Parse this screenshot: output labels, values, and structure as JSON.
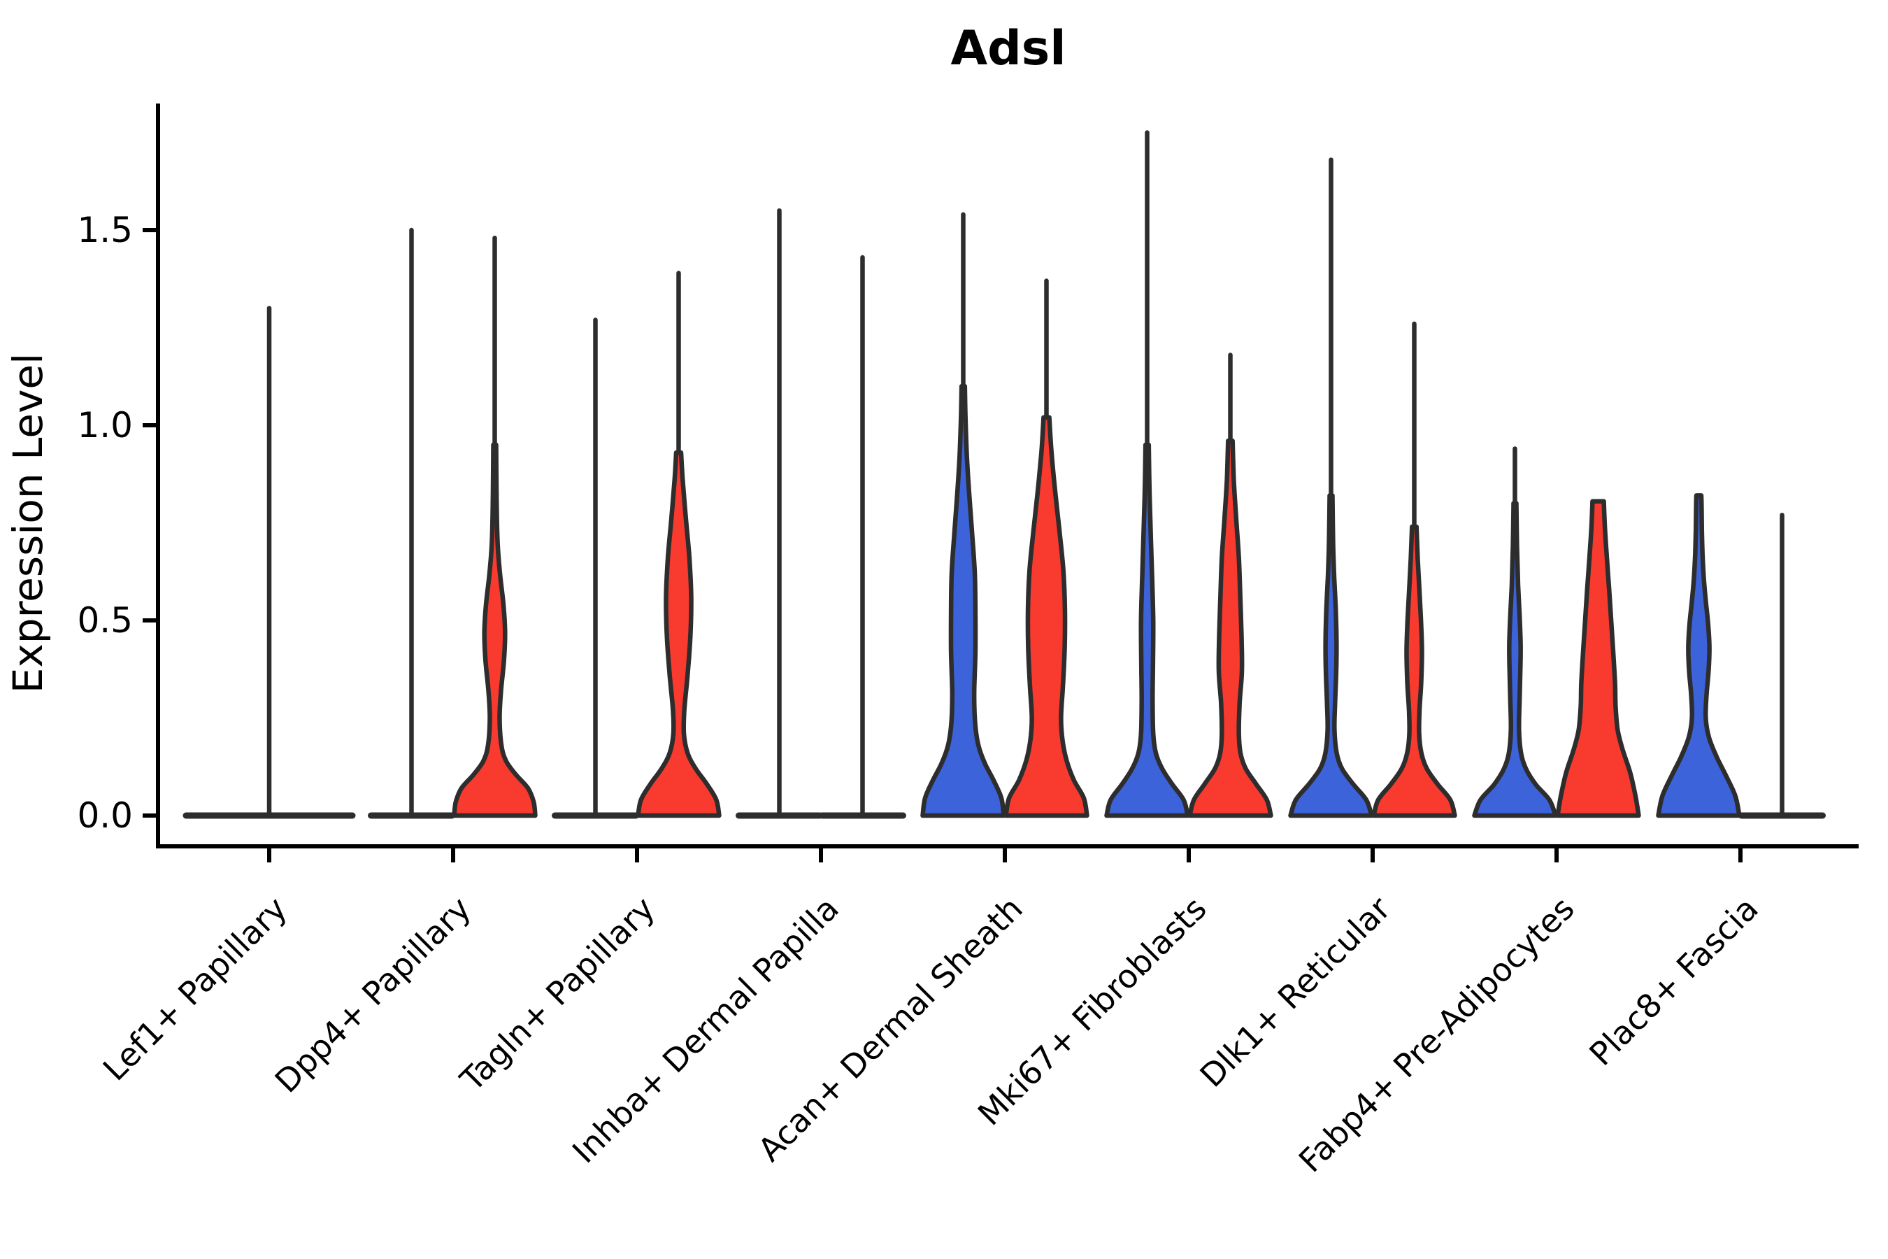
{
  "chart_data": {
    "type": "violin",
    "title": "Adsl",
    "ylabel": "Expression Level",
    "xlabel": "",
    "ylim": [
      0.0,
      1.82
    ],
    "yticks": [
      0.0,
      0.5,
      1.0,
      1.5
    ],
    "ytick_labels": [
      "0.0",
      "0.5",
      "1.0",
      "1.5"
    ],
    "grid": false,
    "legend": "none",
    "groups": [
      "blue",
      "red"
    ],
    "colors": {
      "blue": "#3C63DA",
      "red": "#F83A2F",
      "outline": "#2D2D2D",
      "axis": "#000000"
    },
    "categories": [
      {
        "label": "Lef1+ Papillary",
        "violins": [
          {
            "group": "single",
            "color": "none",
            "style": "flat",
            "span": "full",
            "max": 1.3
          }
        ]
      },
      {
        "label": "Dpp4+ Papillary",
        "violins": [
          {
            "group": "blue",
            "color": "blue",
            "style": "flat",
            "max": 1.5
          },
          {
            "group": "red",
            "color": "red",
            "style": "body",
            "max": 1.48,
            "blunt": false,
            "profile": [
              [
                0,
                1.0
              ],
              [
                0.035,
                0.96
              ],
              [
                0.07,
                0.82
              ],
              [
                0.105,
                0.52
              ],
              [
                0.14,
                0.28
              ],
              [
                0.18,
                0.165
              ],
              [
                0.25,
                0.12
              ],
              [
                0.32,
                0.155
              ],
              [
                0.4,
                0.23
              ],
              [
                0.47,
                0.255
              ],
              [
                0.54,
                0.215
              ],
              [
                0.62,
                0.13
              ],
              [
                0.7,
                0.07
              ],
              [
                0.82,
                0.045
              ],
              [
                0.95,
                0.035
              ]
            ]
          }
        ]
      },
      {
        "label": "Tagln+ Papillary",
        "violins": [
          {
            "group": "blue",
            "color": "blue",
            "style": "flat",
            "max": 1.27
          },
          {
            "group": "red",
            "color": "red",
            "style": "body",
            "max": 1.39,
            "blunt": false,
            "profile": [
              [
                0,
                1.0
              ],
              [
                0.04,
                0.93
              ],
              [
                0.08,
                0.7
              ],
              [
                0.12,
                0.42
              ],
              [
                0.16,
                0.22
              ],
              [
                0.21,
                0.13
              ],
              [
                0.27,
                0.14
              ],
              [
                0.36,
                0.22
              ],
              [
                0.46,
                0.29
              ],
              [
                0.56,
                0.31
              ],
              [
                0.66,
                0.265
              ],
              [
                0.76,
                0.18
              ],
              [
                0.86,
                0.1
              ],
              [
                0.93,
                0.06
              ]
            ]
          }
        ]
      },
      {
        "label": "Inhba+ Dermal Papilla",
        "violins": [
          {
            "group": "blue",
            "color": "blue",
            "style": "flat",
            "max": 1.55
          },
          {
            "group": "red",
            "color": "red",
            "style": "flat",
            "max": 1.43
          }
        ]
      },
      {
        "label": "Acan+ Dermal Sheath",
        "violins": [
          {
            "group": "blue",
            "color": "blue",
            "style": "body",
            "max": 1.54,
            "blunt": false,
            "profile": [
              [
                0,
                1.0
              ],
              [
                0.045,
                0.94
              ],
              [
                0.09,
                0.75
              ],
              [
                0.13,
                0.55
              ],
              [
                0.17,
                0.4
              ],
              [
                0.21,
                0.32
              ],
              [
                0.26,
                0.28
              ],
              [
                0.32,
                0.27
              ],
              [
                0.42,
                0.3
              ],
              [
                0.52,
                0.3
              ],
              [
                0.62,
                0.285
              ],
              [
                0.72,
                0.22
              ],
              [
                0.82,
                0.15
              ],
              [
                0.92,
                0.09
              ],
              [
                1.02,
                0.055
              ],
              [
                1.1,
                0.04
              ]
            ]
          },
          {
            "group": "red",
            "color": "red",
            "style": "body",
            "max": 1.37,
            "blunt": false,
            "profile": [
              [
                0,
                1.0
              ],
              [
                0.045,
                0.92
              ],
              [
                0.09,
                0.68
              ],
              [
                0.14,
                0.5
              ],
              [
                0.19,
                0.4
              ],
              [
                0.25,
                0.36
              ],
              [
                0.33,
                0.405
              ],
              [
                0.43,
                0.45
              ],
              [
                0.53,
                0.455
              ],
              [
                0.63,
                0.415
              ],
              [
                0.73,
                0.32
              ],
              [
                0.83,
                0.215
              ],
              [
                0.93,
                0.125
              ],
              [
                1.02,
                0.07
              ]
            ]
          }
        ]
      },
      {
        "label": "Mki67+ Fibroblasts",
        "violins": [
          {
            "group": "blue",
            "color": "blue",
            "style": "body",
            "max": 1.75,
            "blunt": false,
            "profile": [
              [
                0,
                1.0
              ],
              [
                0.04,
                0.9
              ],
              [
                0.08,
                0.62
              ],
              [
                0.12,
                0.37
              ],
              [
                0.16,
                0.215
              ],
              [
                0.21,
                0.15
              ],
              [
                0.3,
                0.135
              ],
              [
                0.4,
                0.145
              ],
              [
                0.5,
                0.15
              ],
              [
                0.6,
                0.125
              ],
              [
                0.7,
                0.095
              ],
              [
                0.82,
                0.06
              ],
              [
                0.95,
                0.04
              ]
            ]
          },
          {
            "group": "red",
            "color": "red",
            "style": "body",
            "max": 1.18,
            "blunt": false,
            "profile": [
              [
                0,
                1.0
              ],
              [
                0.04,
                0.9
              ],
              [
                0.08,
                0.64
              ],
              [
                0.12,
                0.38
              ],
              [
                0.16,
                0.25
              ],
              [
                0.21,
                0.21
              ],
              [
                0.29,
                0.23
              ],
              [
                0.37,
                0.285
              ],
              [
                0.46,
                0.275
              ],
              [
                0.56,
                0.245
              ],
              [
                0.66,
                0.21
              ],
              [
                0.76,
                0.145
              ],
              [
                0.86,
                0.085
              ],
              [
                0.96,
                0.055
              ]
            ]
          }
        ]
      },
      {
        "label": "Dlk1+ Reticular",
        "violins": [
          {
            "group": "blue",
            "color": "blue",
            "style": "body",
            "max": 1.68,
            "blunt": false,
            "profile": [
              [
                0,
                1.0
              ],
              [
                0.04,
                0.87
              ],
              [
                0.08,
                0.55
              ],
              [
                0.12,
                0.27
              ],
              [
                0.16,
                0.14
              ],
              [
                0.22,
                0.085
              ],
              [
                0.29,
                0.1
              ],
              [
                0.37,
                0.128
              ],
              [
                0.45,
                0.135
              ],
              [
                0.53,
                0.115
              ],
              [
                0.61,
                0.078
              ],
              [
                0.7,
                0.05
              ],
              [
                0.82,
                0.035
              ]
            ]
          },
          {
            "group": "red",
            "color": "red",
            "style": "body",
            "max": 1.26,
            "blunt": false,
            "profile": [
              [
                0,
                1.0
              ],
              [
                0.04,
                0.89
              ],
              [
                0.08,
                0.58
              ],
              [
                0.12,
                0.31
              ],
              [
                0.16,
                0.175
              ],
              [
                0.21,
                0.12
              ],
              [
                0.27,
                0.13
              ],
              [
                0.34,
                0.17
              ],
              [
                0.42,
                0.19
              ],
              [
                0.5,
                0.165
              ],
              [
                0.58,
                0.125
              ],
              [
                0.66,
                0.085
              ],
              [
                0.74,
                0.055
              ]
            ]
          }
        ]
      },
      {
        "label": "Fabp4+ Pre-Adipocytes",
        "violins": [
          {
            "group": "blue",
            "color": "blue",
            "style": "body",
            "max": 0.94,
            "blunt": false,
            "profile": [
              [
                0,
                1.0
              ],
              [
                0.04,
                0.85
              ],
              [
                0.08,
                0.51
              ],
              [
                0.12,
                0.27
              ],
              [
                0.16,
                0.15
              ],
              [
                0.22,
                0.1
              ],
              [
                0.3,
                0.115
              ],
              [
                0.38,
                0.135
              ],
              [
                0.44,
                0.14
              ],
              [
                0.51,
                0.115
              ],
              [
                0.59,
                0.078
              ],
              [
                0.69,
                0.05
              ],
              [
                0.8,
                0.035
              ]
            ]
          },
          {
            "group": "red",
            "color": "red",
            "style": "body",
            "max": 0.805,
            "blunt": true,
            "profile": [
              [
                0,
                1.0
              ],
              [
                0.05,
                0.92
              ],
              [
                0.11,
                0.79
              ],
              [
                0.17,
                0.6
              ],
              [
                0.22,
                0.48
              ],
              [
                0.28,
                0.43
              ],
              [
                0.34,
                0.415
              ],
              [
                0.42,
                0.37
              ],
              [
                0.5,
                0.32
              ],
              [
                0.58,
                0.27
              ],
              [
                0.66,
                0.215
              ],
              [
                0.73,
                0.17
              ],
              [
                0.78,
                0.148
              ],
              [
                0.805,
                0.14
              ]
            ]
          }
        ]
      },
      {
        "label": "Plac8+ Fascia",
        "violins": [
          {
            "group": "blue",
            "color": "blue",
            "style": "body",
            "max": 0.82,
            "blunt": true,
            "profile": [
              [
                0,
                1.0
              ],
              [
                0.05,
                0.9
              ],
              [
                0.1,
                0.68
              ],
              [
                0.15,
                0.44
              ],
              [
                0.2,
                0.25
              ],
              [
                0.25,
                0.17
              ],
              [
                0.31,
                0.19
              ],
              [
                0.37,
                0.24
              ],
              [
                0.43,
                0.26
              ],
              [
                0.49,
                0.23
              ],
              [
                0.55,
                0.17
              ],
              [
                0.61,
                0.12
              ],
              [
                0.67,
                0.09
              ],
              [
                0.73,
                0.075
              ],
              [
                0.79,
                0.068
              ],
              [
                0.82,
                0.06
              ]
            ]
          },
          {
            "group": "red",
            "color": "red",
            "style": "flat",
            "max": 0.77
          }
        ]
      }
    ]
  }
}
